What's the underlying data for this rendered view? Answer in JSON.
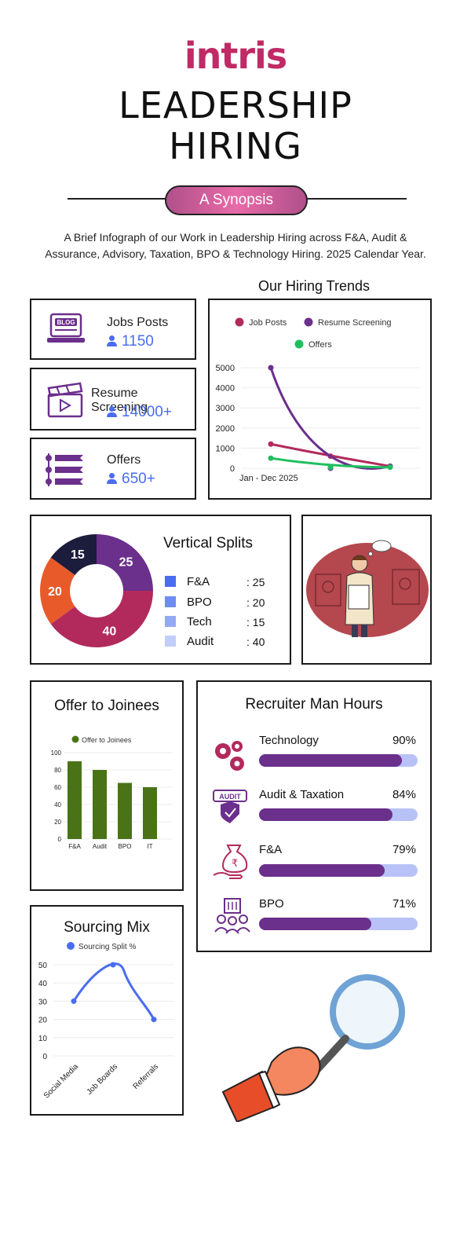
{
  "header": {
    "logo": "intris",
    "title_line1": "LEADERSHIP",
    "title_line2": "HIRING",
    "synopsis": "A Synopsis",
    "description": "A Brief Infograph of our Work in Leadership Hiring across F&A, Audit & Assurance, Advisory, Taxation, BPO & Technology Hiring. 2025 Calendar Year."
  },
  "stats": [
    {
      "label": "Jobs Posts",
      "value": "1150",
      "icon": "blog-laptop-icon"
    },
    {
      "label": "Resume Screening",
      "value": "14000+",
      "icon": "clapperboard-icon"
    },
    {
      "label": "Offers",
      "value": "650+",
      "icon": "list-arrows-icon"
    }
  ],
  "colors": {
    "job_posts": "#b22a5c",
    "resume_screening": "#6b2f8c",
    "offers": "#1fbf5f",
    "accent_blue": "#4a6cf0",
    "bar_green": "#4a7318",
    "bar_purple": "#6b2f8c",
    "bar_track": "#b9c2f7"
  },
  "hiring_trends": {
    "title": "Our Hiring Trends",
    "chart_data": {
      "type": "line",
      "title": "Our Hiring Trends",
      "x": [
        "Jan - Dec 2025",
        "",
        ""
      ],
      "xlabel": "",
      "ylabel": "",
      "ylim": [
        0,
        5000
      ],
      "yticks": [
        "5000",
        "4000",
        "3000",
        "2000",
        "1000",
        "0"
      ],
      "legend": [
        "Job Posts",
        "Resume Screening",
        "Offers"
      ],
      "series": [
        {
          "name": "Job Posts",
          "values": [
            1200,
            600,
            100
          ]
        },
        {
          "name": "Resume Screening",
          "values": [
            5000,
            0,
            100
          ]
        },
        {
          "name": "Offers",
          "values": [
            500,
            50,
            50
          ]
        }
      ]
    }
  },
  "vertical_splits": {
    "title": "Vertical Splits",
    "chart_data": {
      "type": "pie",
      "title": "Vertical Splits",
      "categories": [
        "F&A",
        "BPO",
        "Tech",
        "Audit"
      ],
      "values": [
        25,
        20,
        15,
        40
      ],
      "donut_labels": [
        "25",
        "40",
        "20",
        "15"
      ]
    },
    "legend": [
      {
        "name": "F&A",
        "value": ": 25"
      },
      {
        "name": "BPO",
        "value": ": 20"
      },
      {
        "name": "Tech",
        "value": ": 15"
      },
      {
        "name": "Audit",
        "value": ": 40"
      }
    ],
    "legend_colors": [
      "#4a6cf0",
      "#6f8cf2",
      "#94a9f5",
      "#c2cdfa"
    ]
  },
  "illustration": {
    "icon": "thinking-recruiter-illustration"
  },
  "offer_to_joinees": {
    "title": "Offer to Joinees",
    "chart_data": {
      "type": "bar",
      "title": "Offer to Joinees",
      "categories": [
        "F&A",
        "Audit",
        "BPO",
        "IT"
      ],
      "series": [
        {
          "name": "Offer to Joinees",
          "values": [
            90,
            80,
            65,
            60
          ]
        }
      ],
      "ylim": [
        0,
        100
      ],
      "yticks": [
        "100",
        "80",
        "60",
        "40",
        "20",
        "0"
      ]
    }
  },
  "recruiter_man_hours": {
    "title": "Recruiter Man Hours",
    "items": [
      {
        "label": "Technology",
        "pct_text": "90%",
        "pct": 90,
        "icon": "gears-icon"
      },
      {
        "label": "Audit & Taxation",
        "pct_text": "84%",
        "pct": 84,
        "icon": "audit-shield-icon"
      },
      {
        "label": "F&A",
        "pct_text": "79%",
        "pct": 79,
        "icon": "money-bag-hand-icon"
      },
      {
        "label": "BPO",
        "pct_text": "71%",
        "pct": 71,
        "icon": "team-building-icon"
      }
    ]
  },
  "sourcing_mix": {
    "title": "Sourcing Mix",
    "chart_data": {
      "type": "line",
      "title": "Sourcing Mix",
      "categories": [
        "Social Media",
        "Job Boards",
        "Referrals"
      ],
      "series": [
        {
          "name": "Sourcing Split %",
          "values": [
            30,
            50,
            20
          ]
        }
      ],
      "ylim": [
        0,
        50
      ],
      "yticks": [
        "50",
        "40",
        "30",
        "20",
        "10",
        "0"
      ]
    }
  },
  "magnifier": {
    "icon": "hand-magnifying-glass-illustration"
  }
}
